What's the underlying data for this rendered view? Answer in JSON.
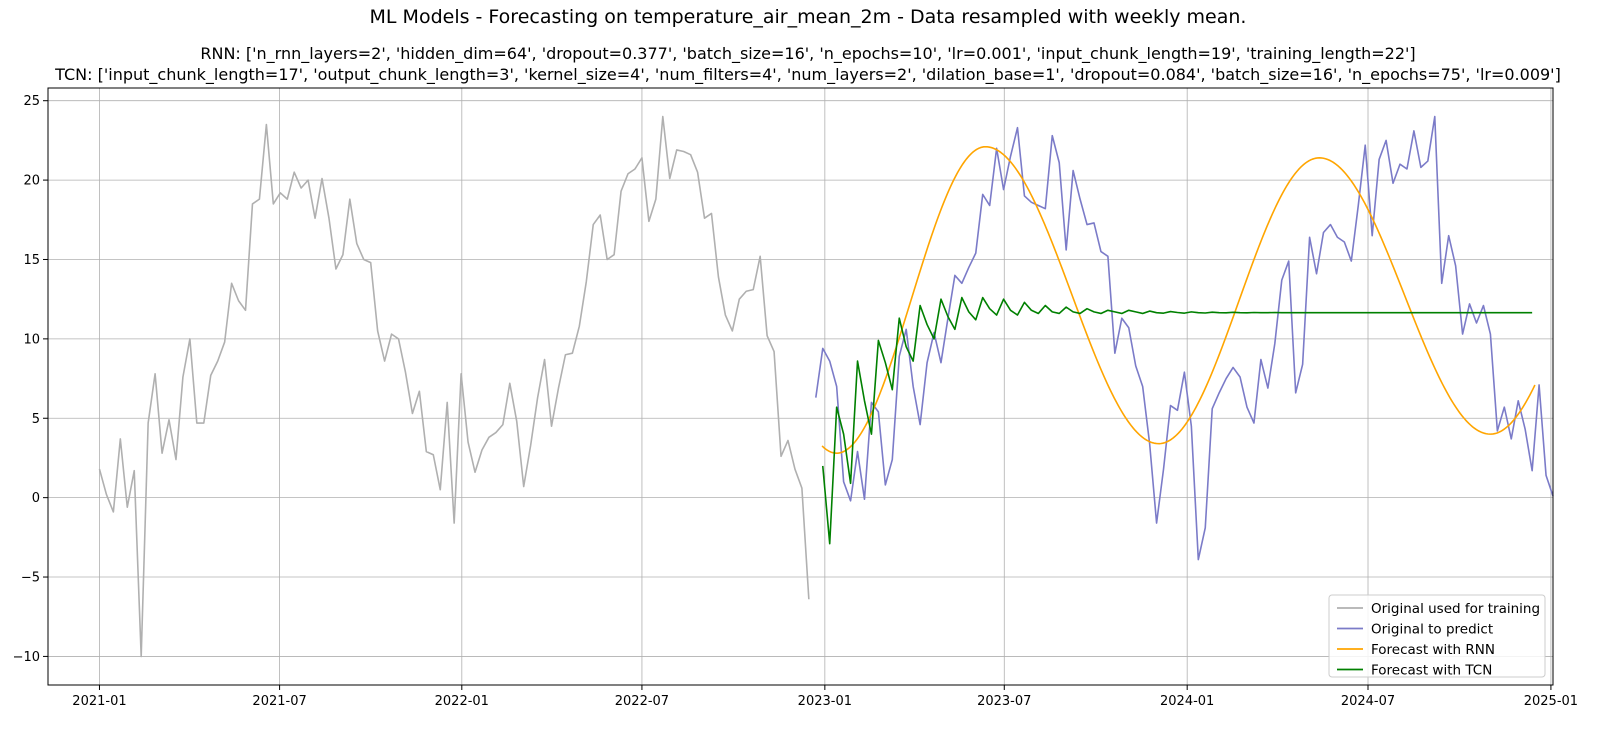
{
  "figure": {
    "title": "ML Models - Forecasting on temperature_air_mean_2m - Data resampled with weekly mean.",
    "subtitle_rnn": "RNN: ['n_rnn_layers=2', 'hidden_dim=64', 'dropout=0.377', 'batch_size=16', 'n_epochs=10', 'lr=0.001', 'input_chunk_length=19', 'training_length=22']",
    "subtitle_tcn": "TCN: ['input_chunk_length=17', 'output_chunk_length=3', 'kernel_size=4', 'num_filters=4', 'num_layers=2', 'dilation_base=1', 'dropout=0.084', 'batch_size=16', 'n_epochs=75', 'lr=0.009']"
  },
  "chart_data": {
    "type": "line",
    "title": "ML Models - Forecasting on temperature_air_mean_2m - Data resampled with weekly mean.",
    "xlabel": "",
    "ylabel": "",
    "x_unit": "weeks since 2021-01-01",
    "xlim": [
      -7.4,
      209
    ],
    "ylim": [
      -11.8,
      25.8
    ],
    "grid": true,
    "legend_position": "lower right",
    "x_ticks": [
      {
        "week": 0,
        "label": "2021-01"
      },
      {
        "week": 25.9,
        "label": "2021-07"
      },
      {
        "week": 52.1,
        "label": "2022-01"
      },
      {
        "week": 78.0,
        "label": "2022-07"
      },
      {
        "week": 104.3,
        "label": "2023-01"
      },
      {
        "week": 130.1,
        "label": "2023-07"
      },
      {
        "week": 156.4,
        "label": "2024-01"
      },
      {
        "week": 182.4,
        "label": "2024-07"
      },
      {
        "week": 208.7,
        "label": "2025-01"
      }
    ],
    "y_ticks": [
      {
        "value": 25,
        "label": "25"
      },
      {
        "value": 20,
        "label": "20"
      },
      {
        "value": 15,
        "label": "15"
      },
      {
        "value": 10,
        "label": "10"
      },
      {
        "value": 5,
        "label": "5"
      },
      {
        "value": 0,
        "label": "0"
      },
      {
        "value": -5,
        "label": "−5"
      },
      {
        "value": -10,
        "label": "−10"
      }
    ],
    "series": [
      {
        "name": "Original used for training",
        "color": "#b0b0b0",
        "x_start": 0,
        "values": [
          1.8,
          0.2,
          -0.9,
          3.7,
          -0.6,
          1.7,
          -10.0,
          4.7,
          7.8,
          2.8,
          4.9,
          2.4,
          7.6,
          10.0,
          4.7,
          4.7,
          7.7,
          8.6,
          9.8,
          13.5,
          12.4,
          11.8,
          18.5,
          18.8,
          23.5,
          18.5,
          19.2,
          18.8,
          20.5,
          19.5,
          20.0,
          17.6,
          20.1,
          17.6,
          14.4,
          15.3,
          18.8,
          16.0,
          15.0,
          14.8,
          10.5,
          8.6,
          10.3,
          10.0,
          7.9,
          5.3,
          6.7,
          2.9,
          2.7,
          0.5,
          6.0,
          -1.6,
          7.8,
          3.5,
          1.6,
          3.0,
          3.8,
          4.1,
          4.6,
          7.2,
          4.8,
          0.7,
          3.3,
          6.3,
          8.7,
          4.5,
          6.9,
          9.0,
          9.1,
          10.8,
          13.6,
          17.2,
          17.8,
          15.0,
          15.3,
          19.3,
          20.4,
          20.7,
          21.4,
          17.4,
          18.8,
          24.0,
          20.1,
          21.9,
          21.8,
          21.6,
          20.5,
          17.6,
          17.9,
          13.9,
          11.5,
          10.5,
          12.5,
          13.0,
          13.1,
          15.2,
          10.2,
          9.2,
          2.6,
          3.6,
          1.8,
          0.6,
          -6.4
        ]
      },
      {
        "name": "Original to predict",
        "color": "#7b7bc8",
        "x_start": 103,
        "values": [
          6.3,
          9.4,
          8.6,
          7.0,
          1.0,
          -0.2,
          2.9,
          -0.1,
          6.0,
          5.4,
          0.8,
          2.4,
          8.9,
          10.6,
          7.0,
          4.6,
          8.5,
          10.4,
          8.5,
          11.3,
          14.0,
          13.5,
          14.5,
          15.4,
          19.1,
          18.4,
          22.0,
          19.4,
          21.5,
          23.3,
          19.0,
          18.6,
          18.4,
          18.2,
          22.8,
          21.1,
          15.6,
          20.6,
          18.8,
          17.2,
          17.3,
          15.5,
          15.2,
          9.1,
          11.3,
          10.7,
          8.3,
          7.0,
          3.4,
          -1.6,
          1.8,
          5.8,
          5.5,
          7.9,
          4.5,
          -3.9,
          -1.9,
          5.6,
          6.6,
          7.5,
          8.2,
          7.6,
          5.7,
          4.7,
          8.7,
          6.9,
          9.7,
          13.7,
          14.9,
          6.6,
          8.4,
          16.4,
          14.1,
          16.7,
          17.2,
          16.4,
          16.1,
          14.9,
          18.4,
          22.2,
          16.5,
          21.3,
          22.5,
          19.8,
          21.0,
          20.7,
          23.1,
          20.8,
          21.2,
          24.0,
          13.5,
          16.5,
          14.6,
          10.3,
          12.2,
          11.0,
          12.1,
          10.3,
          4.2,
          5.7,
          3.7,
          6.1,
          4.3,
          1.7,
          7.1,
          1.4,
          0.1
        ]
      },
      {
        "name": "Forecast with RNN",
        "color": "#ffa500",
        "x_start": 103.9,
        "x_end": 206.6,
        "fit": {
          "kind": "sinusoid_lo_hi",
          "low_1": 2.8,
          "low_1_week": 106.0,
          "high_1": 22.1,
          "high_1_week": 127.4,
          "low_2": 3.4,
          "low_2_week": 152.3,
          "high_2": 21.4,
          "high_2_week": 175.4,
          "low_3": 4.0,
          "low_3_week": 200.0,
          "end": 8.2
        }
      },
      {
        "name": "Forecast with TCN",
        "color": "#008000",
        "x_start": 104,
        "values": [
          2.0,
          -2.9,
          5.7,
          4.0,
          0.9,
          8.6,
          6.1,
          4.0,
          9.9,
          8.5,
          6.8,
          11.3,
          9.5,
          8.6,
          12.1,
          10.9,
          10.0,
          12.5,
          11.4,
          10.6,
          12.6,
          11.7,
          11.2,
          12.6,
          11.9,
          11.5,
          12.5,
          11.8,
          11.5,
          12.3,
          11.8,
          11.6,
          12.1,
          11.7,
          11.6,
          12.0,
          11.7,
          11.6,
          11.9,
          11.7,
          11.6,
          11.8,
          11.7,
          11.6,
          11.8,
          11.7,
          11.6,
          11.75,
          11.65,
          11.62,
          11.72,
          11.66,
          11.62,
          11.7,
          11.65,
          11.63,
          11.68,
          11.65,
          11.64,
          11.67,
          11.65,
          11.64,
          11.66,
          11.65,
          11.65,
          11.66,
          11.65,
          11.65,
          11.65,
          11.65,
          11.65,
          11.65,
          11.65,
          11.65,
          11.65,
          11.65,
          11.65,
          11.65,
          11.65,
          11.65,
          11.65,
          11.65,
          11.65,
          11.65,
          11.65,
          11.65,
          11.65,
          11.65,
          11.65,
          11.65,
          11.65,
          11.65,
          11.65,
          11.65,
          11.65,
          11.65,
          11.65,
          11.65,
          11.65,
          11.65,
          11.65,
          11.65,
          11.65
        ]
      }
    ]
  }
}
